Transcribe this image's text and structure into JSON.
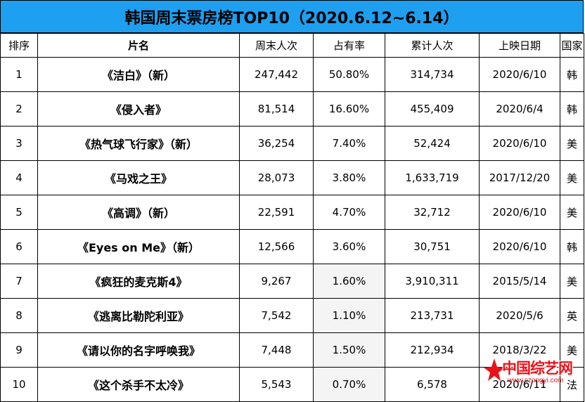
{
  "title": "韩国周末票房榜TOP10（2020.6.12~6.14）",
  "columns": [
    "排序",
    "片名",
    "周末人次",
    "占有率",
    "累计人次",
    "上映日期",
    "国家"
  ],
  "rows": [
    {
      "rank": "1",
      "film": "《洁白》（新）",
      "weekend": "247,442",
      "share": "50.80%",
      "total": "314,734",
      "date": "2020/6/10",
      "country": "韩"
    },
    {
      "rank": "2",
      "film": "《侵入者》",
      "weekend": "81,514",
      "share": "16.60%",
      "total": "455,409",
      "date": "2020/6/4",
      "country": "韩"
    },
    {
      "rank": "3",
      "film": "《热气球飞行家》（新）",
      "weekend": "36,254",
      "share": "7.40%",
      "total": "52,424",
      "date": "2020/6/10",
      "country": "美"
    },
    {
      "rank": "4",
      "film": "《马戏之王》",
      "weekend": "28,073",
      "share": "3.80%",
      "total": "1,633,719",
      "date": "2017/12/20",
      "country": "美"
    },
    {
      "rank": "5",
      "film": "《高调》（新）",
      "weekend": "22,591",
      "share": "4.70%",
      "total": "32,712",
      "date": "2020/6/10",
      "country": "美"
    },
    {
      "rank": "6",
      "film": "《Eyes on Me》（新）",
      "weekend": "12,566",
      "share": "3.60%",
      "total": "30,751",
      "date": "2020/6/10",
      "country": "韩"
    },
    {
      "rank": "7",
      "film": "《疯狂的麦克斯4》",
      "weekend": "9,267",
      "share": "1.60%",
      "total": "3,910,311",
      "date": "2015/5/14",
      "country": "美"
    },
    {
      "rank": "8",
      "film": "《逃离比勒陀利亚》",
      "weekend": "7,542",
      "share": "1.10%",
      "total": "213,731",
      "date": "2020/5/6",
      "country": "英"
    },
    {
      "rank": "9",
      "film": "《请以你的名字呼唤我》",
      "weekend": "7,448",
      "share": "1.50%",
      "total": "212,934",
      "date": "2018/3/22",
      "country": "美"
    },
    {
      "rank": "10",
      "film": "《这个杀手不太冷》",
      "weekend": "5,543",
      "share": "0.70%",
      "total": "6,578",
      "date": "2020/6/11",
      "country": "法"
    }
  ],
  "watermark": {
    "text": "中国综艺网",
    "url": "www.czongyi.com",
    "color": "#e8131a"
  }
}
